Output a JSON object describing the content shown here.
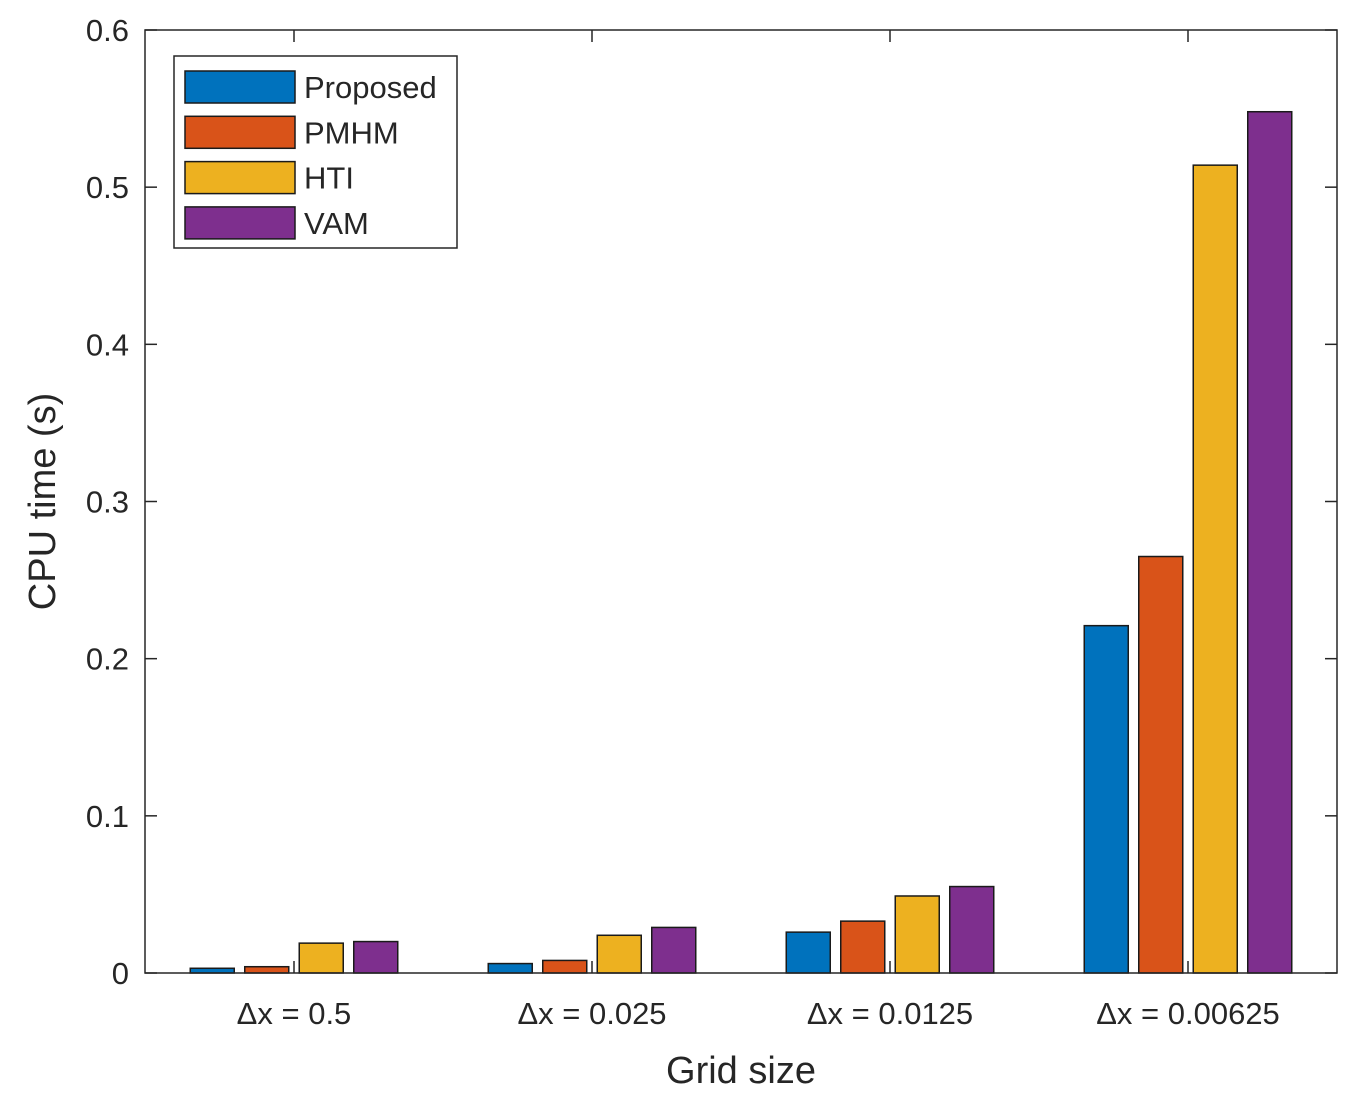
{
  "chart_data": {
    "type": "bar",
    "title": "",
    "xlabel": "Grid size",
    "ylabel": "CPU time (s)",
    "ylim": [
      0,
      0.6
    ],
    "yticks": [
      "0",
      "0.1",
      "0.2",
      "0.3",
      "0.4",
      "0.5",
      "0.6"
    ],
    "categories": [
      "Δx = 0.5",
      "Δx = 0.025",
      "Δx = 0.0125",
      "Δx = 0.00625"
    ],
    "grid": false,
    "legend_position": "top-left",
    "series": [
      {
        "name": "Proposed",
        "color": "#0072BD",
        "values": [
          0.003,
          0.006,
          0.026,
          0.221
        ]
      },
      {
        "name": "PMHM",
        "color": "#D95319",
        "values": [
          0.004,
          0.008,
          0.033,
          0.265
        ]
      },
      {
        "name": "HTI",
        "color": "#EDB120",
        "values": [
          0.019,
          0.024,
          0.049,
          0.514
        ]
      },
      {
        "name": "VAM",
        "color": "#7E2F8E",
        "values": [
          0.02,
          0.029,
          0.055,
          0.548
        ]
      }
    ]
  }
}
